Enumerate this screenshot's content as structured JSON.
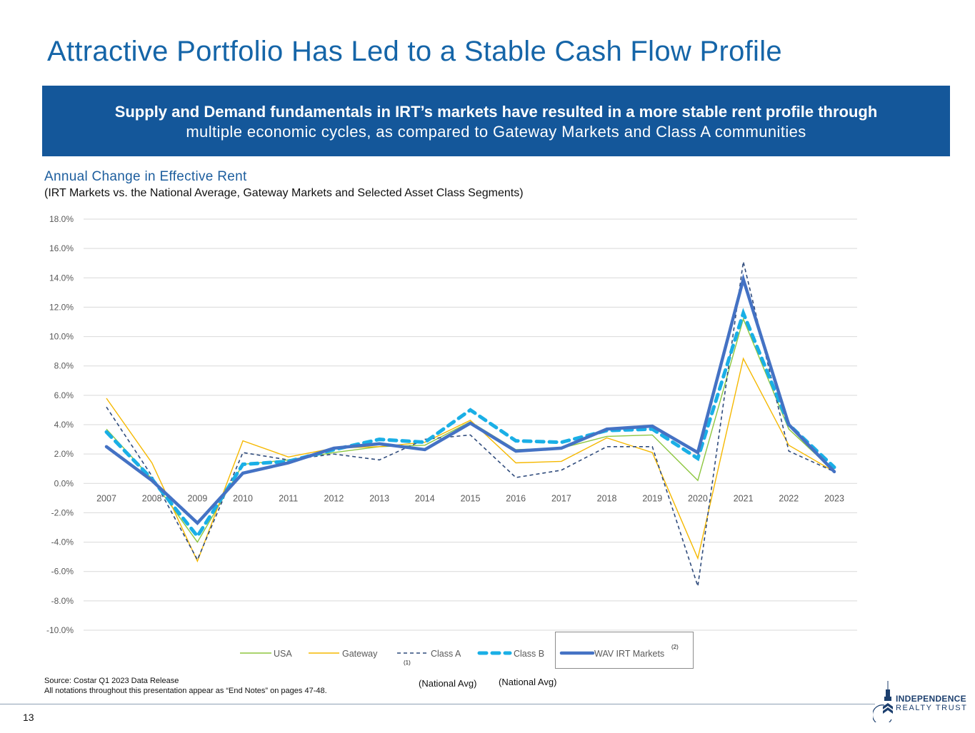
{
  "slide": {
    "title": "Attractive Portfolio Has Led to a Stable Cash Flow Profile",
    "banner": {
      "line1": "Supply and Demand fundamentals in IRT’s markets have resulted in a more stable rent profile through",
      "line2": "multiple economic cycles, as compared to Gateway Markets and Class A communities"
    },
    "footnotes": {
      "source": "Source: Costar Q1 2023 Data Release",
      "notations": "All notations throughout this presentation appear as “End Notes” on pages 47-48."
    },
    "legend_notes": {
      "class_a_note": "(1)",
      "wav_note": "(2)",
      "national_avg_1": "(National Avg)",
      "national_avg_2": "(National Avg)"
    },
    "page_number": "13",
    "logo": {
      "line1": "INDEPENDENCE",
      "line2": "REALTY TRUST"
    }
  },
  "chart_data": {
    "type": "line",
    "title": "Annual Change in Effective Rent",
    "subtitle": "(IRT Markets vs. the National Average, Gateway Markets and Selected Asset Class Segments)",
    "xlabel": "",
    "ylabel": "",
    "x": [
      "2007",
      "2008",
      "2009",
      "2010",
      "2011",
      "2012",
      "2013",
      "2014",
      "2015",
      "2016",
      "2017",
      "2018",
      "2019",
      "2020",
      "2021",
      "2022",
      "2023"
    ],
    "ylim": [
      -10,
      18
    ],
    "yticks": [
      "18.0%",
      "16.0%",
      "14.0%",
      "12.0%",
      "10.0%",
      "8.0%",
      "6.0%",
      "4.0%",
      "2.0%",
      "0.0%",
      "-2.0%",
      "-4.0%",
      "-6.0%",
      "-8.0%",
      "-10.0%"
    ],
    "ytick_values": [
      18,
      16,
      14,
      12,
      10,
      8,
      6,
      4,
      2,
      0,
      -2,
      -4,
      -6,
      -8,
      -10
    ],
    "grid": true,
    "legend_position": "bottom",
    "series": [
      {
        "name": "USA",
        "color": "#8dc63f",
        "style": "solid-thin",
        "values": [
          3.7,
          0.3,
          -4.0,
          1.3,
          1.6,
          2.1,
          2.5,
          2.6,
          4.2,
          2.3,
          2.4,
          3.2,
          3.3,
          0.2,
          11.2,
          3.7,
          0.8
        ]
      },
      {
        "name": "Gateway",
        "color": "#f5b800",
        "style": "solid-thin",
        "values": [
          5.8,
          1.4,
          -5.3,
          2.9,
          1.8,
          2.4,
          2.5,
          2.8,
          4.3,
          1.4,
          1.5,
          3.1,
          2.1,
          -5.1,
          8.5,
          2.6,
          0.8
        ]
      },
      {
        "name": "Class A",
        "color": "#2f4b7c",
        "style": "dashed-thin",
        "values": [
          5.2,
          0.5,
          -5.2,
          2.1,
          1.6,
          2.0,
          1.6,
          3.0,
          3.3,
          0.4,
          0.9,
          2.5,
          2.5,
          -7.0,
          15.1,
          2.2,
          0.8
        ]
      },
      {
        "name": "Class B",
        "color": "#1aafe6",
        "style": "dashed-thick",
        "values": [
          3.5,
          0.3,
          -3.6,
          1.3,
          1.5,
          2.3,
          3.0,
          2.8,
          5.0,
          2.9,
          2.8,
          3.6,
          3.7,
          1.7,
          11.6,
          4.0,
          1.1
        ]
      },
      {
        "name": "WAV IRT Markets",
        "color": "#4472c4",
        "style": "solid-thick",
        "values": [
          2.5,
          0.2,
          -2.7,
          0.7,
          1.4,
          2.4,
          2.7,
          2.3,
          4.1,
          2.2,
          2.4,
          3.7,
          3.9,
          2.1,
          13.9,
          4.0,
          0.8
        ]
      }
    ]
  }
}
